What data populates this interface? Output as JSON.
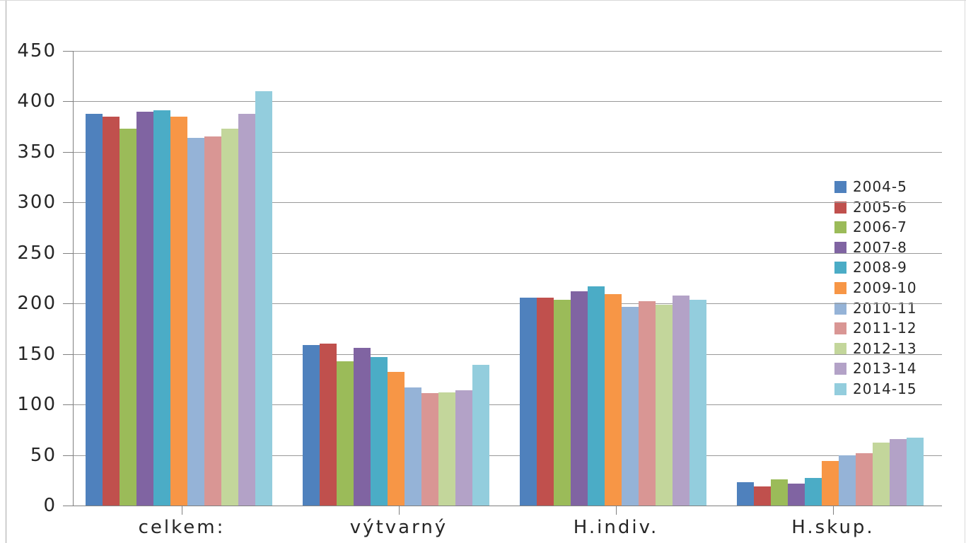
{
  "chart_data": {
    "type": "bar",
    "title": "",
    "xlabel": "",
    "ylabel": "",
    "categories": [
      "celkem:",
      "výtvarný",
      "H.indiv.",
      "H.skup."
    ],
    "series": [
      {
        "name": "2004-5",
        "color": "#4F81BD",
        "values": [
          388,
          159,
          206,
          23
        ]
      },
      {
        "name": "2005-6",
        "color": "#C0504D",
        "values": [
          385,
          160,
          206,
          19
        ]
      },
      {
        "name": "2006-7",
        "color": "#9BBB59",
        "values": [
          373,
          143,
          204,
          26
        ]
      },
      {
        "name": "2007-8",
        "color": "#8064A2",
        "values": [
          390,
          156,
          212,
          22
        ]
      },
      {
        "name": "2008-9",
        "color": "#4BACC6",
        "values": [
          391,
          147,
          217,
          27
        ]
      },
      {
        "name": "2009-10",
        "color": "#F79646",
        "values": [
          385,
          132,
          209,
          44
        ]
      },
      {
        "name": "2010-11",
        "color": "#95B3D7",
        "values": [
          364,
          117,
          197,
          50
        ]
      },
      {
        "name": "2011-12",
        "color": "#D99694",
        "values": [
          365,
          111,
          202,
          52
        ]
      },
      {
        "name": "2012-13",
        "color": "#C3D69B",
        "values": [
          373,
          112,
          199,
          62
        ]
      },
      {
        "name": "2013-14",
        "color": "#B3A2C7",
        "values": [
          388,
          114,
          208,
          66
        ]
      },
      {
        "name": "2014-15",
        "color": "#93CDDD",
        "values": [
          410,
          139,
          204,
          67
        ]
      }
    ],
    "ylim": [
      0,
      450
    ],
    "yticks": [
      0,
      50,
      100,
      150,
      200,
      250,
      300,
      350,
      400,
      450
    ],
    "grid": "horizontal-major",
    "legend_position": "inside-right"
  },
  "colors": {
    "background": "#ffffff",
    "gridline": "#999999",
    "axis": "#808080",
    "text": "#262626",
    "frame_left": "#a6a6a6",
    "frame_faint": "#d9d9d9"
  }
}
